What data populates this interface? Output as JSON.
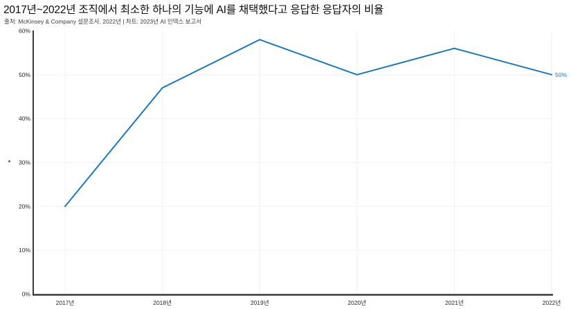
{
  "header": {
    "title": "2017년~2022년 조직에서 최소한 하나의 기능에 AI를 채택했다고 응답한 응답자의 비율",
    "subtitle": "출처: McKinsey & Company 설문조사, 2022년 | 차트: 2023년 AI 인덱스 보고서"
  },
  "chart_data": {
    "type": "line",
    "title": "2017년~2022년 조직에서 최소한 하나의 기능에 AI를 채택했다고 응답한 응답자의 비율",
    "subtitle": "출처: McKinsey & Company 설문조사, 2022년 | 차트: 2023년 AI 인덱스 보고서",
    "categories": [
      "2017년",
      "2018년",
      "2019년",
      "2020년",
      "2021년",
      "2022년"
    ],
    "values": [
      20,
      47,
      58,
      50,
      56,
      50
    ],
    "xlabel": "",
    "ylabel": "",
    "ylim": [
      0,
      60
    ],
    "yticks": [
      0,
      10,
      20,
      30,
      40,
      50,
      60
    ],
    "ytick_labels": [
      "0%",
      "10%",
      "20%",
      "30%",
      "40%",
      "50%",
      "60%"
    ],
    "grid": true,
    "legend_position": "none",
    "end_label": "50%",
    "colors": {
      "line": "#1f77b4",
      "end_label": "#1f77b4",
      "axis": "#3a3a3a",
      "grid": "#f0f0f0",
      "title": "#0a0a0a",
      "subtitle": "#3d3d3d",
      "tick_label": "#262626"
    }
  }
}
